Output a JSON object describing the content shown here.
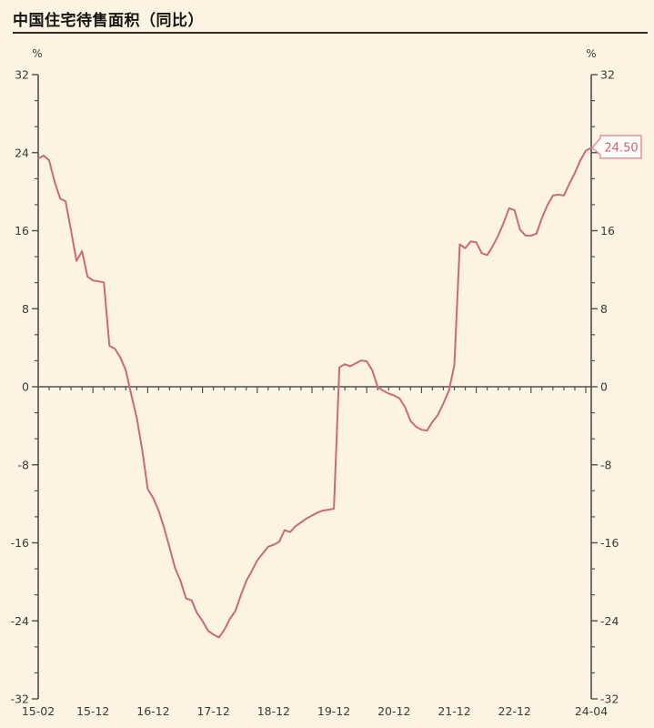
{
  "title": "中国住宅待售面积（同比）",
  "axes": {
    "left_unit": "%",
    "right_unit": "%"
  },
  "callout": {
    "label": "24.50"
  },
  "colors": {
    "background": "#fcf3e3",
    "line": "#c96b75",
    "axis": "#52504a",
    "tick_text": "#3c3a33",
    "callout_border": "#de939c",
    "callout_fill": "#fffdf8",
    "callout_text": "#cf6570",
    "title_text": "#161511"
  },
  "chart_data": {
    "type": "line",
    "title": "中国住宅待售面积（同比）",
    "ylabel": "%",
    "ylim": [
      -32,
      32
    ],
    "y_major_step": 8,
    "y_minor_per_major": 3,
    "y_tick_labels": [
      "32",
      "24",
      "16",
      "8",
      "0",
      "-8",
      "-16",
      "-24",
      "-32"
    ],
    "grid": "zero-line-only",
    "legend_position": "none",
    "last_point_label": "24.50",
    "x_axis_labels": [
      {
        "label": "15-02",
        "index": 0
      },
      {
        "label": "15-12",
        "index": 10
      },
      {
        "label": "16-12",
        "index": 21
      },
      {
        "label": "17-12",
        "index": 32
      },
      {
        "label": "18-12",
        "index": 43
      },
      {
        "label": "19-12",
        "index": 54
      },
      {
        "label": "20-12",
        "index": 65
      },
      {
        "label": "21-12",
        "index": 76
      },
      {
        "label": "22-12",
        "index": 87
      },
      {
        "label": "24-04",
        "index": 101
      }
    ],
    "x": [
      "15-02",
      "15-03",
      "15-04",
      "15-05",
      "15-06",
      "15-07",
      "15-08",
      "15-09",
      "15-10",
      "15-11",
      "15-12",
      "16-02",
      "16-03",
      "16-04",
      "16-05",
      "16-06",
      "16-07",
      "16-08",
      "16-09",
      "16-10",
      "16-11",
      "16-12",
      "17-02",
      "17-03",
      "17-04",
      "17-05",
      "17-06",
      "17-07",
      "17-08",
      "17-09",
      "17-10",
      "17-11",
      "17-12",
      "18-02",
      "18-03",
      "18-04",
      "18-05",
      "18-06",
      "18-07",
      "18-08",
      "18-09",
      "18-10",
      "18-11",
      "18-12",
      "19-02",
      "19-03",
      "19-04",
      "19-05",
      "19-06",
      "19-07",
      "19-08",
      "19-09",
      "19-10",
      "19-11",
      "19-12",
      "20-02",
      "20-03",
      "20-04",
      "20-05",
      "20-06",
      "20-07",
      "20-08",
      "20-09",
      "20-10",
      "20-11",
      "20-12",
      "21-02",
      "21-03",
      "21-04",
      "21-05",
      "21-06",
      "21-07",
      "21-08",
      "21-09",
      "21-10",
      "21-11",
      "21-12",
      "22-02",
      "22-03",
      "22-04",
      "22-05",
      "22-06",
      "22-07",
      "22-08",
      "22-09",
      "22-10",
      "22-11",
      "22-12",
      "23-02",
      "23-03",
      "23-04",
      "23-05",
      "23-06",
      "23-07",
      "23-08",
      "23-09",
      "23-10",
      "23-11",
      "23-12",
      "24-02",
      "24-03",
      "24-04"
    ],
    "values": [
      23.4,
      23.7,
      23.2,
      21.0,
      19.3,
      19.0,
      16.0,
      12.9,
      13.9,
      11.3,
      10.9,
      10.8,
      10.7,
      4.2,
      3.9,
      3.0,
      1.7,
      -0.8,
      -3.2,
      -6.5,
      -10.5,
      -11.4,
      -12.7,
      -14.5,
      -16.5,
      -18.6,
      -19.9,
      -21.7,
      -21.9,
      -23.2,
      -24.0,
      -25.0,
      -25.4,
      -25.7,
      -24.9,
      -23.8,
      -23.0,
      -21.4,
      -19.9,
      -18.9,
      -17.8,
      -17.1,
      -16.4,
      -16.2,
      -15.9,
      -14.7,
      -14.9,
      -14.3,
      -13.9,
      -13.5,
      -13.2,
      -12.9,
      -12.7,
      -12.6,
      -12.5,
      2.0,
      2.3,
      2.1,
      2.4,
      2.7,
      2.6,
      1.7,
      0.0,
      -0.4,
      -0.7,
      -0.9,
      -1.2,
      -2.1,
      -3.5,
      -4.1,
      -4.4,
      -4.5,
      -3.6,
      -2.9,
      -1.7,
      -0.4,
      2.2,
      14.6,
      14.2,
      14.9,
      14.8,
      13.7,
      13.5,
      14.4,
      15.5,
      16.8,
      18.3,
      18.1,
      16.1,
      15.5,
      15.5,
      15.7,
      17.3,
      18.6,
      19.6,
      19.7,
      19.6,
      20.8,
      21.9,
      23.2,
      24.2,
      24.5
    ]
  }
}
